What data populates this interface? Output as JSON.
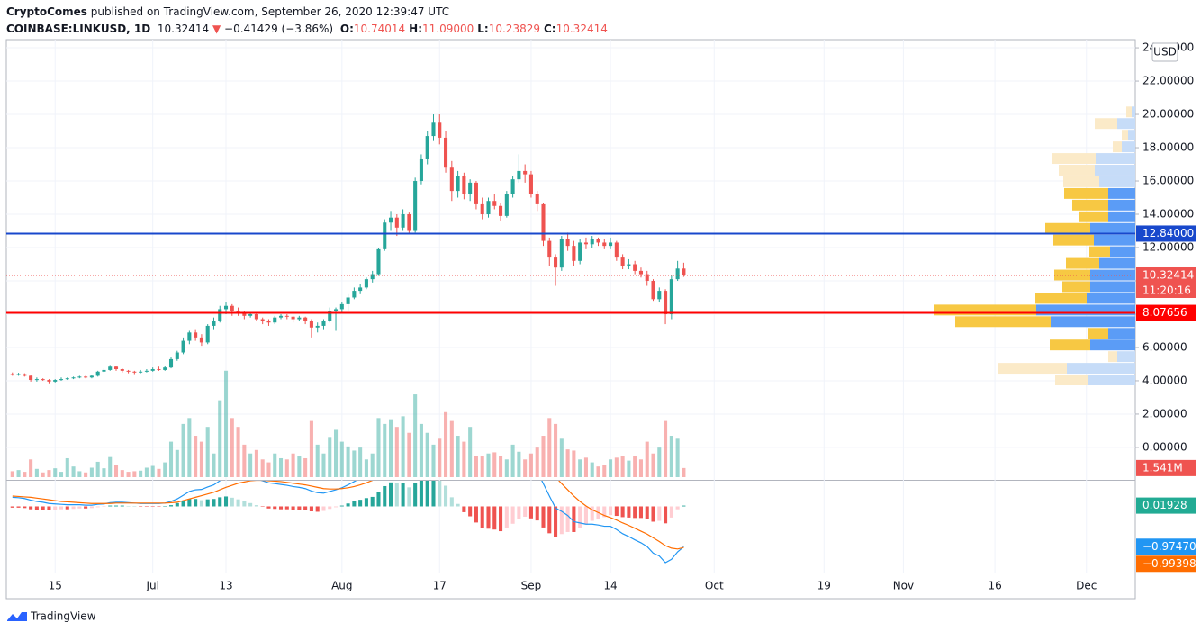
{
  "header": {
    "author": "CryptoComes",
    "published": "published on TradingView.com, September 26, 2020 12:39:47 UTC",
    "symbol": "COINBASE:LINKUSD, 1D",
    "price": "10.32414",
    "arrow": "▼",
    "change": "−0.41429 (−3.86%)",
    "ohlc": [
      {
        "label": "O:",
        "value": "10.74014"
      },
      {
        "label": "H:",
        "value": "11.09000"
      },
      {
        "label": "L:",
        "value": "10.23829"
      },
      {
        "label": "C:",
        "value": "10.32414"
      }
    ]
  },
  "footer": {
    "brand": "TradingView"
  },
  "chart_data": {
    "type": "candlestick",
    "currency": "USD",
    "up_color": "#26a69a",
    "down_color": "#ef5350",
    "grid": true,
    "x": [
      "2020-06-08",
      "2020-06-09",
      "2020-06-10",
      "2020-06-11",
      "2020-06-12",
      "2020-06-13",
      "2020-06-14",
      "2020-06-15",
      "2020-06-16",
      "2020-06-17",
      "2020-06-18",
      "2020-06-19",
      "2020-06-20",
      "2020-06-21",
      "2020-06-22",
      "2020-06-23",
      "2020-06-24",
      "2020-06-25",
      "2020-06-26",
      "2020-06-27",
      "2020-06-28",
      "2020-06-29",
      "2020-06-30",
      "2020-07-01",
      "2020-07-02",
      "2020-07-03",
      "2020-07-04",
      "2020-07-05",
      "2020-07-06",
      "2020-07-07",
      "2020-07-08",
      "2020-07-09",
      "2020-07-10",
      "2020-07-11",
      "2020-07-12",
      "2020-07-13",
      "2020-07-14",
      "2020-07-15",
      "2020-07-16",
      "2020-07-17",
      "2020-07-18",
      "2020-07-19",
      "2020-07-20",
      "2020-07-21",
      "2020-07-22",
      "2020-07-23",
      "2020-07-24",
      "2020-07-25",
      "2020-07-26",
      "2020-07-27",
      "2020-07-28",
      "2020-07-29",
      "2020-07-30",
      "2020-07-31",
      "2020-08-01",
      "2020-08-02",
      "2020-08-03",
      "2020-08-04",
      "2020-08-05",
      "2020-08-06",
      "2020-08-07",
      "2020-08-08",
      "2020-08-09",
      "2020-08-10",
      "2020-08-11",
      "2020-08-12",
      "2020-08-13",
      "2020-08-14",
      "2020-08-15",
      "2020-08-16",
      "2020-08-17",
      "2020-08-18",
      "2020-08-19",
      "2020-08-20",
      "2020-08-21",
      "2020-08-22",
      "2020-08-23",
      "2020-08-24",
      "2020-08-25",
      "2020-08-26",
      "2020-08-27",
      "2020-08-28",
      "2020-08-29",
      "2020-08-30",
      "2020-08-31",
      "2020-09-01",
      "2020-09-02",
      "2020-09-03",
      "2020-09-04",
      "2020-09-05",
      "2020-09-06",
      "2020-09-07",
      "2020-09-08",
      "2020-09-09",
      "2020-09-10",
      "2020-09-11",
      "2020-09-12",
      "2020-09-13",
      "2020-09-14",
      "2020-09-15",
      "2020-09-16",
      "2020-09-17",
      "2020-09-18",
      "2020-09-19",
      "2020-09-20",
      "2020-09-21",
      "2020-09-22",
      "2020-09-23",
      "2020-09-24",
      "2020-09-25",
      "2020-09-26"
    ],
    "open": [
      4.4,
      4.35,
      4.4,
      4.3,
      4.05,
      4.1,
      4.05,
      3.95,
      4.05,
      4.1,
      4.15,
      4.2,
      4.25,
      4.2,
      4.3,
      4.55,
      4.65,
      4.85,
      4.7,
      4.6,
      4.55,
      4.5,
      4.55,
      4.6,
      4.7,
      4.65,
      4.8,
      5.3,
      5.7,
      6.4,
      6.9,
      6.6,
      6.3,
      7.3,
      7.6,
      8.3,
      8.5,
      8.2,
      8.1,
      7.9,
      8.0,
      7.7,
      7.6,
      7.5,
      7.8,
      7.9,
      7.85,
      7.7,
      7.8,
      7.6,
      7.2,
      7.3,
      7.6,
      8.2,
      8.3,
      8.6,
      9.0,
      9.4,
      9.6,
      10.1,
      10.4,
      11.9,
      13.5,
      13.8,
      13.2,
      14.0,
      13.0,
      16.0,
      17.3,
      18.7,
      19.5,
      18.6,
      16.8,
      15.4,
      16.3,
      15.2,
      15.9,
      14.6,
      14.0,
      14.8,
      14.5,
      13.9,
      15.2,
      16.1,
      16.6,
      16.4,
      15.2,
      14.6,
      12.4,
      11.4,
      10.8,
      12.5,
      12.1,
      11.2,
      12.3,
      12.2,
      12.5,
      12.3,
      12.1,
      12.3,
      11.4,
      10.9,
      11.0,
      10.6,
      10.4,
      10.0,
      8.9,
      9.4,
      8.0,
      10.1,
      10.74014
    ],
    "high": [
      4.5,
      4.48,
      4.45,
      4.35,
      4.2,
      4.15,
      4.1,
      4.1,
      4.2,
      4.2,
      4.25,
      4.3,
      4.3,
      4.35,
      4.6,
      4.75,
      4.95,
      4.9,
      4.75,
      4.65,
      4.6,
      4.65,
      4.7,
      4.8,
      4.85,
      4.9,
      5.4,
      5.8,
      6.6,
      7.0,
      7.1,
      6.8,
      7.4,
      7.8,
      8.5,
      8.7,
      8.6,
      8.4,
      8.2,
      8.1,
      8.05,
      7.8,
      7.7,
      7.9,
      8.0,
      8.0,
      7.9,
      7.9,
      7.85,
      7.7,
      7.5,
      7.7,
      8.4,
      8.4,
      8.7,
      9.2,
      9.6,
      9.8,
      10.2,
      10.6,
      12.0,
      13.7,
      14.2,
      14.0,
      14.3,
      14.1,
      16.2,
      17.6,
      19.0,
      20.0,
      20.0,
      19.0,
      17.2,
      16.6,
      16.5,
      16.1,
      16.0,
      15.0,
      15.0,
      15.2,
      14.7,
      15.4,
      16.3,
      17.6,
      17.0,
      16.6,
      15.4,
      14.7,
      12.6,
      11.6,
      12.7,
      12.9,
      12.4,
      12.5,
      12.6,
      12.7,
      12.6,
      12.5,
      12.6,
      12.4,
      11.6,
      11.3,
      11.2,
      10.8,
      10.6,
      10.1,
      9.6,
      9.5,
      10.3,
      11.2,
      11.09
    ],
    "low": [
      4.3,
      4.3,
      4.25,
      3.95,
      3.95,
      4.0,
      3.85,
      3.9,
      4.0,
      4.05,
      4.1,
      4.15,
      4.15,
      4.15,
      4.25,
      4.5,
      4.6,
      4.6,
      4.5,
      4.45,
      4.4,
      4.45,
      4.5,
      4.55,
      4.6,
      4.6,
      4.75,
      5.2,
      5.6,
      6.2,
      6.4,
      6.1,
      6.2,
      7.1,
      7.5,
      8.0,
      7.9,
      7.9,
      7.7,
      7.8,
      7.6,
      7.4,
      7.3,
      7.4,
      7.7,
      7.7,
      7.5,
      7.6,
      7.4,
      6.6,
      6.9,
      7.1,
      7.5,
      7.0,
      8.1,
      8.2,
      8.9,
      9.2,
      9.5,
      9.9,
      10.3,
      11.8,
      13.0,
      12.7,
      13.0,
      12.8,
      12.9,
      15.8,
      17.0,
      18.4,
      18.2,
      16.5,
      14.8,
      15.0,
      14.9,
      14.8,
      14.3,
      13.7,
      13.8,
      14.3,
      13.6,
      13.8,
      15.0,
      15.9,
      15.9,
      15.0,
      14.2,
      12.1,
      10.9,
      9.7,
      10.6,
      11.8,
      10.9,
      11.0,
      11.9,
      12.0,
      12.1,
      11.9,
      11.9,
      11.2,
      10.7,
      10.7,
      10.4,
      10.2,
      9.7,
      8.8,
      8.7,
      7.4,
      7.7,
      10.0,
      10.23829
    ],
    "close": [
      4.35,
      4.4,
      4.3,
      4.05,
      4.1,
      4.05,
      3.95,
      4.05,
      4.1,
      4.15,
      4.2,
      4.25,
      4.2,
      4.3,
      4.55,
      4.65,
      4.85,
      4.7,
      4.6,
      4.55,
      4.5,
      4.55,
      4.6,
      4.7,
      4.65,
      4.8,
      5.3,
      5.7,
      6.4,
      6.9,
      6.6,
      6.3,
      7.3,
      7.6,
      8.3,
      8.5,
      8.2,
      8.1,
      7.9,
      8.0,
      7.7,
      7.6,
      7.5,
      7.8,
      7.9,
      7.85,
      7.7,
      7.8,
      7.6,
      7.2,
      7.3,
      7.6,
      8.2,
      8.3,
      8.6,
      9.0,
      9.4,
      9.6,
      10.1,
      10.4,
      11.9,
      13.5,
      13.8,
      13.2,
      14.0,
      13.0,
      16.0,
      17.3,
      18.7,
      19.5,
      18.6,
      16.8,
      15.4,
      16.3,
      15.2,
      15.9,
      14.6,
      14.0,
      14.8,
      14.5,
      13.9,
      15.2,
      16.1,
      16.6,
      16.4,
      15.2,
      14.6,
      12.4,
      11.4,
      10.8,
      12.5,
      12.1,
      11.2,
      12.3,
      12.2,
      12.5,
      12.3,
      12.1,
      12.3,
      11.4,
      10.9,
      11.0,
      10.6,
      10.4,
      10.0,
      8.9,
      9.4,
      8.0,
      10.1,
      10.74014,
      10.32414
    ],
    "xlim": [
      "2020-06-07",
      "2020-12-09"
    ],
    "xticks": [
      {
        "value": "2020-06-15",
        "label": "15"
      },
      {
        "value": "2020-07-01",
        "label": "Jul"
      },
      {
        "value": "2020-07-13",
        "label": "13"
      },
      {
        "value": "2020-08-01",
        "label": "Aug"
      },
      {
        "value": "2020-08-17",
        "label": "17"
      },
      {
        "value": "2020-09-01",
        "label": "Sep"
      },
      {
        "value": "2020-09-14",
        "label": "14"
      },
      {
        "value": "2020-10-01",
        "label": "Oct"
      },
      {
        "value": "2020-10-19",
        "label": "19"
      },
      {
        "value": "2020-11-01",
        "label": "Nov"
      },
      {
        "value": "2020-11-16",
        "label": "16"
      },
      {
        "value": "2020-12-01",
        "label": "Dec"
      }
    ],
    "ylim": [
      -1.95,
      24.49
    ],
    "yticks": [
      {
        "value": 0,
        "label": "0.00000"
      },
      {
        "value": 2,
        "label": "2.00000"
      },
      {
        "value": 4,
        "label": "4.00000"
      },
      {
        "value": 6,
        "label": "6.00000"
      },
      {
        "value": 8,
        "label": "8.00000"
      },
      {
        "value": 10,
        "label": "10.00000"
      },
      {
        "value": 12,
        "label": "12.00000"
      },
      {
        "value": 14,
        "label": "14.00000"
      },
      {
        "value": 16,
        "label": "16.00000"
      },
      {
        "value": 18,
        "label": "18.00000"
      },
      {
        "value": 20,
        "label": "20.00000"
      },
      {
        "value": 22,
        "label": "22.00000"
      },
      {
        "value": 24,
        "label": "24.00000"
      }
    ],
    "levels": [
      {
        "value": 12.84,
        "label": "12.84000",
        "color": "#1848cc"
      },
      {
        "value": 8.07656,
        "label": "8.07656",
        "color": "#ff0000"
      }
    ],
    "last_price": {
      "value": 10.32414,
      "label": "10.32414",
      "countdown": "11:20:16",
      "color": "#ef5350"
    },
    "volume": {
      "ylim": [
        0,
        74
      ],
      "values": [
        1.0,
        1.2,
        0.9,
        3.0,
        1.4,
        0.8,
        1.2,
        1.5,
        0.9,
        3.2,
        1.8,
        1.0,
        0.8,
        1.6,
        2.6,
        1.5,
        3.4,
        2.0,
        1.2,
        0.9,
        1.0,
        1.1,
        1.6,
        1.9,
        1.4,
        2.5,
        6.0,
        4.6,
        9.0,
        10.0,
        7.0,
        6.0,
        8.5,
        4.0,
        13.0,
        18.0,
        10.0,
        8.5,
        5.5,
        4.0,
        4.6,
        3.0,
        2.5,
        4.0,
        3.2,
        3.0,
        4.0,
        3.5,
        3.2,
        9.5,
        5.5,
        4.0,
        6.8,
        8.0,
        6.0,
        5.2,
        4.5,
        5.0,
        3.0,
        4.0,
        10.0,
        9.0,
        9.8,
        8.5,
        10.3,
        7.5,
        14.0,
        9.0,
        7.5,
        5.5,
        6.5,
        11.0,
        9.5,
        7.0,
        6.0,
        8.5,
        3.6,
        3.5,
        4.0,
        4.2,
        3.6,
        3.0,
        5.5,
        4.3,
        3.0,
        4.0,
        5.0,
        7.0,
        10.0,
        9.0,
        6.5,
        4.7,
        4.5,
        3.0,
        3.3,
        2.5,
        1.8,
        2.0,
        3.0,
        3.3,
        3.5,
        2.8,
        3.5,
        3.0,
        6.0,
        4.0,
        5.0,
        9.5,
        7.0,
        6.5,
        1.541
      ],
      "last_label": "1.541M"
    },
    "volume_profile": {
      "bins": [
        3.7,
        4.4,
        5.1,
        5.8,
        6.5,
        7.2,
        7.9,
        8.6,
        9.3,
        10.0,
        10.7,
        11.4,
        12.1,
        12.8,
        13.5,
        14.2,
        14.9,
        15.6,
        16.3,
        17.0,
        17.7,
        18.4,
        19.1,
        19.8,
        20.5
      ],
      "up": [
        52,
        76,
        20,
        50,
        30,
        94,
        110,
        54,
        50,
        50,
        40,
        28,
        46,
        50,
        30,
        30,
        30,
        40,
        45,
        44,
        15,
        8,
        20,
        4
      ],
      "down": [
        37,
        76,
        10,
        45,
        22,
        106,
        114,
        57,
        31,
        40,
        37,
        23,
        45,
        50,
        33,
        40,
        49,
        40,
        40,
        48,
        10,
        7,
        25,
        6
      ],
      "value_area": [
        5.8,
        15.8
      ],
      "up_color": "#5b9cf6",
      "down_color": "#f7c843",
      "up_pale": "#c6dcf8",
      "down_pale": "#fbeac8"
    },
    "macd": {
      "ylim": [
        -1.6,
        0.62
      ],
      "macd_color": "#2196f3",
      "signal_color": "#ff6d00",
      "histogram": [
        -0.03,
        -0.03,
        -0.04,
        -0.07,
        -0.08,
        -0.08,
        -0.09,
        -0.08,
        -0.07,
        -0.07,
        -0.06,
        -0.05,
        -0.05,
        -0.04,
        -0.02,
        -0.01,
        0.02,
        0.02,
        0.02,
        0.01,
        0.0,
        -0.01,
        -0.01,
        -0.01,
        -0.01,
        0.0,
        0.03,
        0.08,
        0.13,
        0.18,
        0.18,
        0.15,
        0.17,
        0.18,
        0.22,
        0.24,
        0.21,
        0.17,
        0.12,
        0.08,
        0.03,
        -0.01,
        -0.05,
        -0.06,
        -0.07,
        -0.07,
        -0.08,
        -0.08,
        -0.09,
        -0.12,
        -0.13,
        -0.11,
        -0.06,
        -0.02,
        0.02,
        0.07,
        0.12,
        0.16,
        0.2,
        0.23,
        0.34,
        0.49,
        0.58,
        0.56,
        0.56,
        0.46,
        0.56,
        0.66,
        0.76,
        0.81,
        0.73,
        0.5,
        0.22,
        0.06,
        -0.14,
        -0.24,
        -0.39,
        -0.52,
        -0.54,
        -0.56,
        -0.6,
        -0.53,
        -0.42,
        -0.31,
        -0.25,
        -0.29,
        -0.34,
        -0.51,
        -0.65,
        -0.75,
        -0.67,
        -0.62,
        -0.62,
        -0.52,
        -0.44,
        -0.35,
        -0.3,
        -0.26,
        -0.21,
        -0.23,
        -0.26,
        -0.27,
        -0.28,
        -0.28,
        -0.3,
        -0.37,
        -0.35,
        -0.41,
        -0.27,
        -0.07,
        0.01928
      ],
      "macd": [
        0.22,
        0.21,
        0.19,
        0.15,
        0.12,
        0.1,
        0.07,
        0.06,
        0.05,
        0.04,
        0.04,
        0.04,
        0.03,
        0.03,
        0.05,
        0.06,
        0.09,
        0.1,
        0.1,
        0.09,
        0.08,
        0.07,
        0.07,
        0.07,
        0.07,
        0.08,
        0.12,
        0.18,
        0.27,
        0.36,
        0.4,
        0.41,
        0.47,
        0.52,
        0.62,
        0.7,
        0.72,
        0.73,
        0.71,
        0.7,
        0.66,
        0.62,
        0.57,
        0.55,
        0.53,
        0.51,
        0.48,
        0.46,
        0.43,
        0.37,
        0.33,
        0.32,
        0.36,
        0.4,
        0.45,
        0.52,
        0.6,
        0.68,
        0.77,
        0.86,
        1.05,
        1.32,
        1.55,
        1.67,
        1.81,
        1.82,
        2.06,
        2.33,
        2.62,
        2.88,
        2.98,
        2.88,
        2.66,
        2.52,
        2.29,
        2.13,
        1.88,
        1.62,
        1.46,
        1.3,
        1.11,
        1.05,
        1.06,
        1.09,
        1.09,
        0.98,
        0.84,
        0.55,
        0.25,
        -0.04,
        -0.12,
        -0.22,
        -0.37,
        -0.4,
        -0.43,
        -0.43,
        -0.45,
        -0.48,
        -0.48,
        -0.56,
        -0.66,
        -0.73,
        -0.81,
        -0.88,
        -0.97,
        -1.13,
        -1.2,
        -1.36,
        -1.28,
        -1.1,
        -0.9747
      ],
      "signal": [
        0.25,
        0.24,
        0.23,
        0.22,
        0.2,
        0.18,
        0.16,
        0.14,
        0.12,
        0.11,
        0.1,
        0.09,
        0.08,
        0.07,
        0.07,
        0.07,
        0.07,
        0.08,
        0.08,
        0.08,
        0.08,
        0.08,
        0.08,
        0.08,
        0.08,
        0.08,
        0.09,
        0.1,
        0.14,
        0.18,
        0.22,
        0.26,
        0.3,
        0.34,
        0.4,
        0.46,
        0.51,
        0.56,
        0.59,
        0.62,
        0.63,
        0.63,
        0.62,
        0.61,
        0.6,
        0.58,
        0.56,
        0.54,
        0.52,
        0.49,
        0.46,
        0.43,
        0.42,
        0.42,
        0.43,
        0.45,
        0.48,
        0.52,
        0.57,
        0.63,
        0.71,
        0.83,
        0.97,
        1.11,
        1.25,
        1.36,
        1.5,
        1.67,
        1.86,
        2.07,
        2.25,
        2.38,
        2.44,
        2.46,
        2.43,
        2.37,
        2.27,
        2.14,
        2.0,
        1.86,
        1.71,
        1.58,
        1.48,
        1.4,
        1.34,
        1.27,
        1.18,
        1.06,
        0.9,
        0.71,
        0.55,
        0.4,
        0.25,
        0.12,
        0.01,
        -0.08,
        -0.15,
        -0.22,
        -0.27,
        -0.33,
        -0.4,
        -0.46,
        -0.53,
        -0.6,
        -0.67,
        -0.76,
        -0.85,
        -0.95,
        -1.01,
        -1.03,
        -0.99398
      ],
      "histogram_label": "0.01928",
      "macd_label": "−0.97470",
      "signal_label": "−0.99398"
    }
  }
}
